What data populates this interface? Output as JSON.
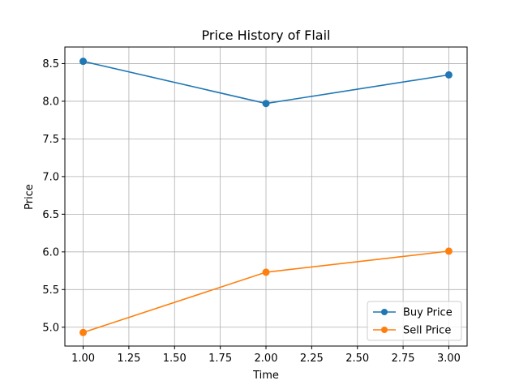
{
  "chart_data": {
    "type": "line",
    "title": "Price History of Flail",
    "xlabel": "Time",
    "ylabel": "Price",
    "xlim": [
      0.9,
      3.1
    ],
    "ylim": [
      4.75,
      8.72
    ],
    "xticks": [
      "1.00",
      "1.25",
      "1.50",
      "1.75",
      "2.00",
      "2.25",
      "2.50",
      "2.75",
      "3.00"
    ],
    "yticks": [
      "5.0",
      "5.5",
      "6.0",
      "6.5",
      "7.0",
      "7.5",
      "8.0",
      "8.5"
    ],
    "grid": true,
    "legend_position": "lower-right",
    "x": [
      1,
      2,
      3
    ],
    "series": [
      {
        "name": "Buy Price",
        "color": "#1f77b4",
        "values": [
          8.53,
          7.97,
          8.35
        ]
      },
      {
        "name": "Sell Price",
        "color": "#ff7f0e",
        "values": [
          4.93,
          5.73,
          6.01
        ]
      }
    ]
  }
}
